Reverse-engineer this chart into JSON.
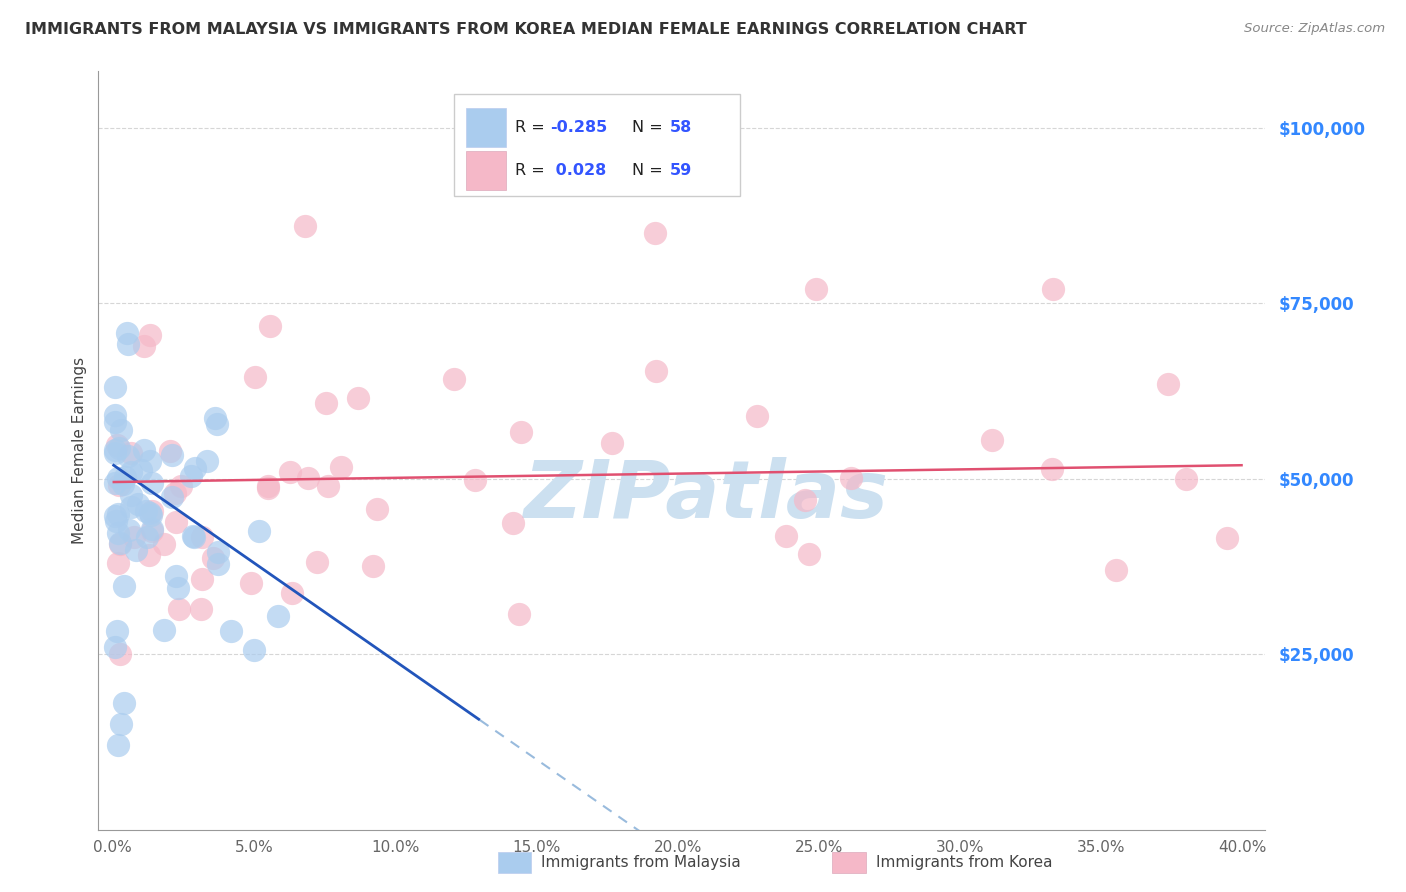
{
  "title": "IMMIGRANTS FROM MALAYSIA VS IMMIGRANTS FROM KOREA MEDIAN FEMALE EARNINGS CORRELATION CHART",
  "source": "Source: ZipAtlas.com",
  "ylabel": "Median Female Earnings",
  "malaysia_R": "-0.285",
  "malaysia_N": "58",
  "korea_R": "0.028",
  "korea_N": "59",
  "malaysia_color": "#aaccee",
  "malaysia_edge_color": "#88aadd",
  "korea_color": "#f5b8c8",
  "korea_edge_color": "#e890a8",
  "malaysia_line_color": "#2255bb",
  "korea_line_color": "#e05070",
  "dashed_line_color": "#99bbdd",
  "watermark": "ZIPatlas",
  "watermark_color": "#cce0f0",
  "background_color": "#ffffff",
  "grid_color": "#cccccc",
  "legend_border_color": "#cccccc",
  "ytick_color": "#3388ff",
  "xtick_color": "#666666",
  "title_color": "#333333",
  "source_color": "#888888",
  "ylabel_color": "#444444"
}
